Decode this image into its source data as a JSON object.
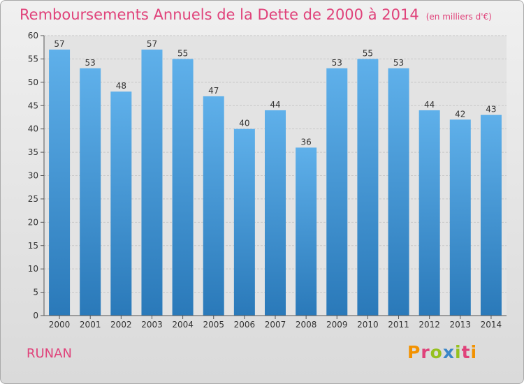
{
  "header": {
    "title": "Remboursements Annuels de la Dette de 2000 à 2014",
    "unit": "(en milliers d'€)"
  },
  "commune": "RUNAN",
  "logo": {
    "text": "Proxiti",
    "letter_colors": [
      "#f39200",
      "#e0427a",
      "#95c11f",
      "#3a86c8",
      "#95c11f",
      "#e0427a",
      "#f39200"
    ]
  },
  "colors": {
    "bar_top": "#5fb0ea",
    "bar_bottom": "#2a79b9",
    "grid": "#c8c8c8",
    "axis": "#555555",
    "title": "#e0427a"
  },
  "chart_data": {
    "type": "bar",
    "title": "Remboursements Annuels de la Dette de 2000 à 2014",
    "xlabel": "",
    "ylabel": "",
    "ylim": [
      0,
      60
    ],
    "yticks": [
      0,
      5,
      10,
      15,
      20,
      25,
      30,
      35,
      40,
      45,
      50,
      55,
      60
    ],
    "grid": true,
    "categories": [
      "2000",
      "2001",
      "2002",
      "2003",
      "2004",
      "2005",
      "2006",
      "2007",
      "2008",
      "2009",
      "2010",
      "2011",
      "2012",
      "2013",
      "2014"
    ],
    "values": [
      57,
      53,
      48,
      57,
      55,
      47,
      40,
      44,
      36,
      53,
      55,
      53,
      44,
      42,
      43
    ]
  }
}
